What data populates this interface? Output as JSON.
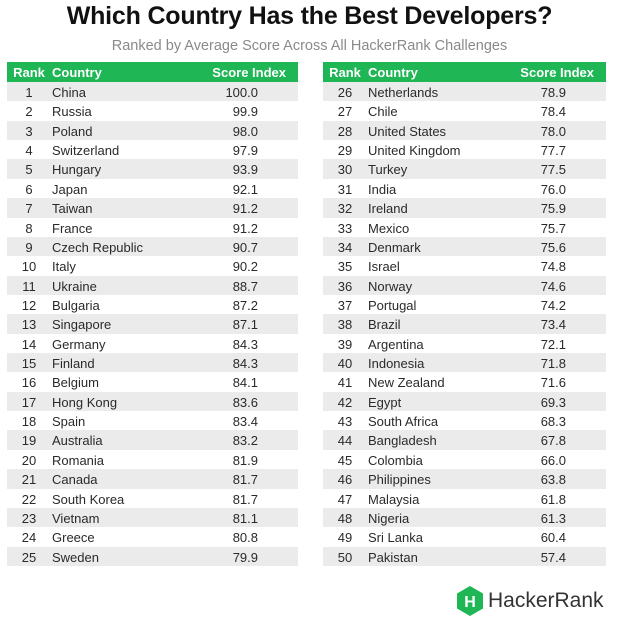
{
  "title": "Which Country Has the Best Developers?",
  "subtitle": "Ranked by Average Score Across All HackerRank Challenges",
  "headers": {
    "rank": "Rank",
    "country": "Country",
    "score": "Score Index"
  },
  "logo": {
    "text": "HackerRank",
    "mark": "H",
    "color": "#1fb655"
  },
  "colors": {
    "header": "#1fb655",
    "stripe": "#ebebeb"
  },
  "chart_data": {
    "type": "table",
    "title": "Which Country Has the Best Developers?",
    "subtitle": "Ranked by Average Score Across All HackerRank Challenges",
    "columns": [
      "Rank",
      "Country",
      "Score Index"
    ],
    "rows": [
      [
        1,
        "China",
        "100.0"
      ],
      [
        2,
        "Russia",
        "99.9"
      ],
      [
        3,
        "Poland",
        "98.0"
      ],
      [
        4,
        "Switzerland",
        "97.9"
      ],
      [
        5,
        "Hungary",
        "93.9"
      ],
      [
        6,
        "Japan",
        "92.1"
      ],
      [
        7,
        "Taiwan",
        "91.2"
      ],
      [
        8,
        "France",
        "91.2"
      ],
      [
        9,
        "Czech Republic",
        "90.7"
      ],
      [
        10,
        "Italy",
        "90.2"
      ],
      [
        11,
        "Ukraine",
        "88.7"
      ],
      [
        12,
        "Bulgaria",
        "87.2"
      ],
      [
        13,
        "Singapore",
        "87.1"
      ],
      [
        14,
        "Germany",
        "84.3"
      ],
      [
        15,
        "Finland",
        "84.3"
      ],
      [
        16,
        "Belgium",
        "84.1"
      ],
      [
        17,
        "Hong Kong",
        "83.6"
      ],
      [
        18,
        "Spain",
        "83.4"
      ],
      [
        19,
        "Australia",
        "83.2"
      ],
      [
        20,
        "Romania",
        "81.9"
      ],
      [
        21,
        "Canada",
        "81.7"
      ],
      [
        22,
        "South Korea",
        "81.7"
      ],
      [
        23,
        "Vietnam",
        "81.1"
      ],
      [
        24,
        "Greece",
        "80.8"
      ],
      [
        25,
        "Sweden",
        "79.9"
      ],
      [
        26,
        "Netherlands",
        "78.9"
      ],
      [
        27,
        "Chile",
        "78.4"
      ],
      [
        28,
        "United States",
        "78.0"
      ],
      [
        29,
        "United Kingdom",
        "77.7"
      ],
      [
        30,
        "Turkey",
        "77.5"
      ],
      [
        31,
        "India",
        "76.0"
      ],
      [
        32,
        "Ireland",
        "75.9"
      ],
      [
        33,
        "Mexico",
        "75.7"
      ],
      [
        34,
        "Denmark",
        "75.6"
      ],
      [
        35,
        "Israel",
        "74.8"
      ],
      [
        36,
        "Norway",
        "74.6"
      ],
      [
        37,
        "Portugal",
        "74.2"
      ],
      [
        38,
        "Brazil",
        "73.4"
      ],
      [
        39,
        "Argentina",
        "72.1"
      ],
      [
        40,
        "Indonesia",
        "71.8"
      ],
      [
        41,
        "New Zealand",
        "71.6"
      ],
      [
        42,
        "Egypt",
        "69.3"
      ],
      [
        43,
        "South Africa",
        "68.3"
      ],
      [
        44,
        "Bangladesh",
        "67.8"
      ],
      [
        45,
        "Colombia",
        "66.0"
      ],
      [
        46,
        "Philippines",
        "63.8"
      ],
      [
        47,
        "Malaysia",
        "61.8"
      ],
      [
        48,
        "Nigeria",
        "61.3"
      ],
      [
        49,
        "Sri Lanka",
        "60.4"
      ],
      [
        50,
        "Pakistan",
        "57.4"
      ]
    ]
  }
}
